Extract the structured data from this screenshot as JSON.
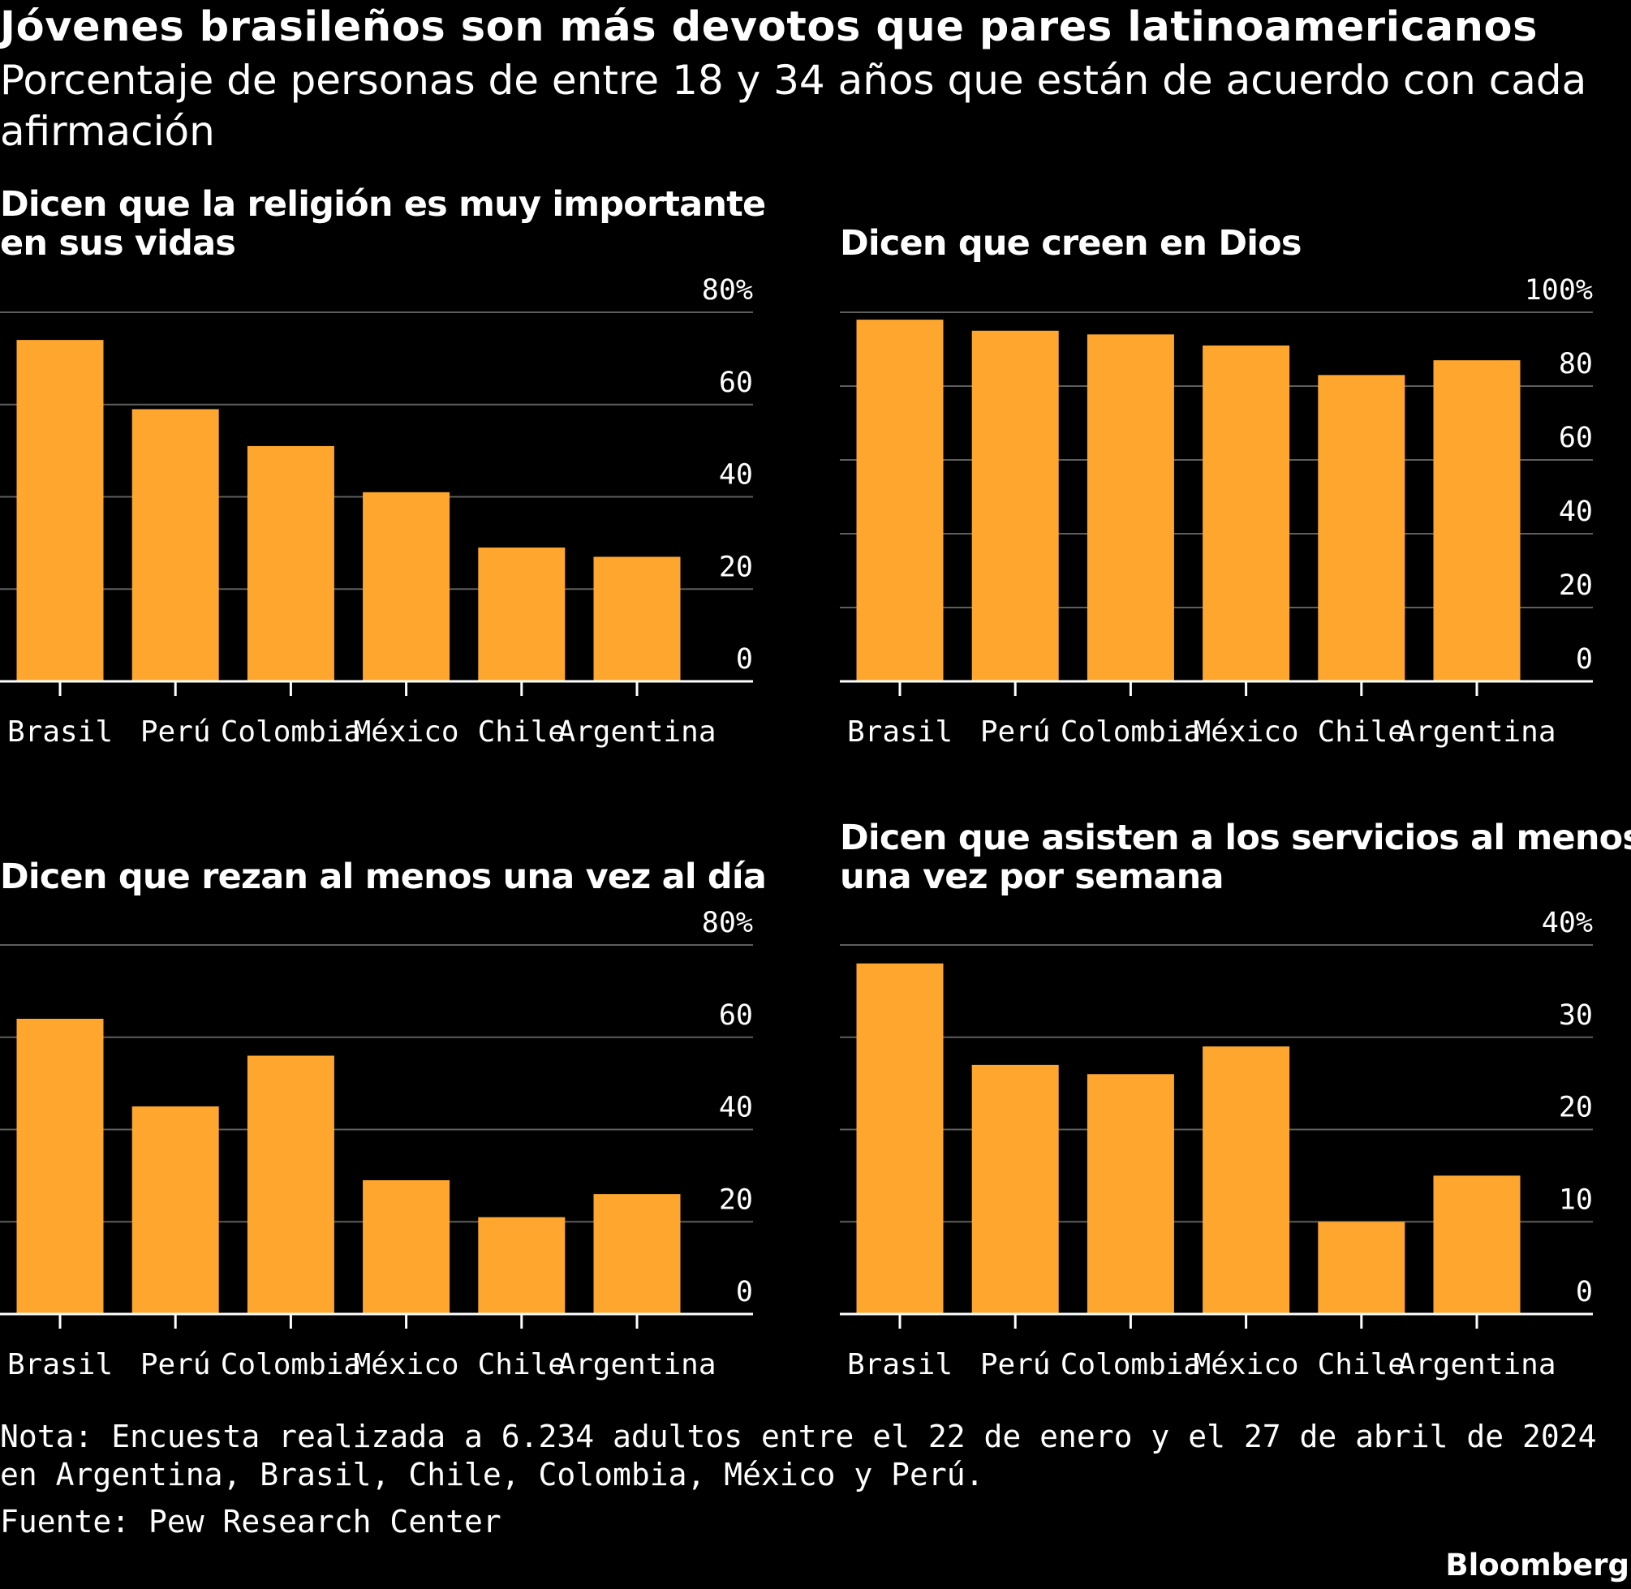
{
  "title": "Jóvenes brasileños son más devotos que pares latinoamericanos",
  "subtitle": "Porcentaje de personas de entre 18 y 34 años que están de acuerdo con cada afirmación",
  "colors": {
    "bar": "#FFA62E",
    "grid": "#5e5e5e",
    "axis": "#ffffff",
    "background": "#000000"
  },
  "chart_data": [
    {
      "type": "bar",
      "title": "Dicen que la religión es muy importante en sus vidas",
      "categories": [
        "Brasil",
        "Perú",
        "Colombia",
        "México",
        "Chile",
        "Argentina"
      ],
      "values": [
        74,
        59,
        51,
        41,
        29,
        27
      ],
      "ylim": [
        0,
        80
      ],
      "yticks": [
        0,
        20,
        40,
        60,
        80
      ],
      "ytick_labels": [
        "0",
        "20",
        "40",
        "60",
        "80%"
      ],
      "xlabel": "",
      "ylabel": ""
    },
    {
      "type": "bar",
      "title": "Dicen que creen en Dios",
      "categories": [
        "Brasil",
        "Perú",
        "Colombia",
        "México",
        "Chile",
        "Argentina"
      ],
      "values": [
        98,
        95,
        94,
        91,
        83,
        87
      ],
      "ylim": [
        0,
        100
      ],
      "yticks": [
        0,
        20,
        40,
        60,
        80,
        100
      ],
      "ytick_labels": [
        "0",
        "20",
        "40",
        "60",
        "80",
        "100%"
      ],
      "xlabel": "",
      "ylabel": ""
    },
    {
      "type": "bar",
      "title": "Dicen que rezan al menos una vez al día",
      "categories": [
        "Brasil",
        "Perú",
        "Colombia",
        "México",
        "Chile",
        "Argentina"
      ],
      "values": [
        64,
        45,
        56,
        29,
        21,
        26
      ],
      "ylim": [
        0,
        80
      ],
      "yticks": [
        0,
        20,
        40,
        60,
        80
      ],
      "ytick_labels": [
        "0",
        "20",
        "40",
        "60",
        "80%"
      ],
      "xlabel": "",
      "ylabel": ""
    },
    {
      "type": "bar",
      "title": "Dicen que asisten a los servicios al menos una vez por semana",
      "categories": [
        "Brasil",
        "Perú",
        "Colombia",
        "México",
        "Chile",
        "Argentina"
      ],
      "values": [
        38,
        27,
        26,
        29,
        10,
        15
      ],
      "ylim": [
        0,
        40
      ],
      "yticks": [
        0,
        10,
        20,
        30,
        40
      ],
      "ytick_labels": [
        "0",
        "10",
        "20",
        "30",
        "40%"
      ],
      "xlabel": "",
      "ylabel": ""
    }
  ],
  "note": "Nota: Encuesta realizada a 6.234 adultos entre el 22 de enero y el 27 de abril de 2024 en Argentina, Brasil, Chile, Colombia, México y Perú.",
  "source": "Fuente: Pew Research Center",
  "brand": "Bloomberg"
}
